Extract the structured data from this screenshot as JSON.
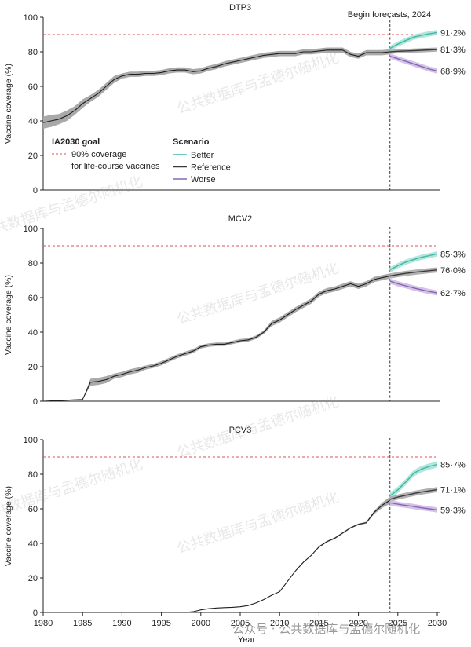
{
  "chart_data": [
    {
      "type": "line",
      "title": "DTP3",
      "ylabel": "Vaccine coverage (%)",
      "ylim": [
        0,
        100
      ],
      "yticks": [
        0,
        20,
        40,
        60,
        80,
        100
      ],
      "goal_value": 90,
      "forecast_start": 2024,
      "forecast_label": "Begin forecasts, 2024",
      "legend": {
        "goal_title": "IA2030 goal",
        "goal_label": "90% coverage\nfor life-course vaccines",
        "scenario_title": "Scenario",
        "scenario_labels": [
          "Better",
          "Reference",
          "Worse"
        ]
      },
      "history": {
        "x": [
          1980,
          1981,
          1982,
          1983,
          1984,
          1985,
          1986,
          1987,
          1988,
          1989,
          1990,
          1991,
          1992,
          1993,
          1994,
          1995,
          1996,
          1997,
          1998,
          1999,
          2000,
          2001,
          2002,
          2003,
          2004,
          2005,
          2006,
          2007,
          2008,
          2009,
          2010,
          2011,
          2012,
          2013,
          2014,
          2015,
          2016,
          2017,
          2018,
          2019,
          2020,
          2021,
          2022,
          2023,
          2024
        ],
        "y": [
          39,
          40,
          41,
          43,
          46,
          50,
          53,
          56,
          60,
          64,
          66,
          67,
          67,
          67.5,
          67.5,
          68,
          69,
          69.5,
          69.5,
          68.5,
          69,
          70.5,
          71.5,
          73,
          74,
          75,
          76,
          77,
          78,
          78.5,
          79,
          79,
          79,
          80,
          80,
          80.5,
          81,
          81,
          81,
          78.5,
          77.5,
          79.5,
          79.5,
          79.5,
          80
        ],
        "band": [
          3.5,
          3.5,
          3,
          3,
          2.5,
          2.5,
          2,
          2,
          2,
          2,
          1.5,
          1.5,
          1.5,
          1.5,
          1.5,
          1.5,
          1.5,
          1.5,
          1.5,
          1.5,
          1.5,
          1.5,
          1.5,
          1.5,
          1.5,
          1.5,
          1.5,
          1.5,
          1.5,
          1.5,
          1.5,
          1.5,
          1.5,
          1.5,
          1.5,
          1.5,
          1.5,
          1.5,
          1.5,
          1.5,
          1.5,
          1.5,
          1.5,
          1.5,
          1.5
        ]
      },
      "forecast": {
        "x": [
          2024,
          2025,
          2026,
          2027,
          2028,
          2029,
          2030
        ],
        "series": [
          {
            "name": "Better",
            "values": [
              82,
              84.5,
              86.5,
              88.5,
              89.5,
              90.5,
              91.2
            ],
            "band": 1.5
          },
          {
            "name": "Reference",
            "values": [
              80,
              80.3,
              80.5,
              80.7,
              80.9,
              81.1,
              81.3
            ],
            "band": 1.2
          },
          {
            "name": "Worse",
            "values": [
              77.5,
              76,
              74.5,
              73,
              71.5,
              70,
              68.9
            ],
            "band": 1.5
          }
        ],
        "end_labels": [
          "91·2%",
          "81·3%",
          "68·9%"
        ]
      }
    },
    {
      "type": "line",
      "title": "MCV2",
      "ylabel": "Vaccine coverage (%)",
      "ylim": [
        0,
        100
      ],
      "yticks": [
        0,
        20,
        40,
        60,
        80,
        100
      ],
      "goal_value": 90,
      "forecast_start": 2024,
      "history": {
        "x": [
          1980,
          1981,
          1982,
          1983,
          1984,
          1985,
          1986,
          1987,
          1988,
          1989,
          1990,
          1991,
          1992,
          1993,
          1994,
          1995,
          1996,
          1997,
          1998,
          1999,
          2000,
          2001,
          2002,
          2003,
          2004,
          2005,
          2006,
          2007,
          2008,
          2009,
          2010,
          2011,
          2012,
          2013,
          2014,
          2015,
          2016,
          2017,
          2018,
          2019,
          2020,
          2021,
          2022,
          2023,
          2024
        ],
        "y": [
          0,
          0.2,
          0.4,
          0.6,
          0.8,
          1,
          11,
          11.5,
          12.5,
          14.5,
          15.5,
          17,
          18,
          19.5,
          20.5,
          22,
          24,
          26,
          27.5,
          29,
          31.5,
          32.5,
          33,
          33,
          34,
          35,
          35.5,
          37,
          40,
          45,
          47,
          50,
          53,
          55.5,
          58,
          62,
          64,
          65,
          66.5,
          68,
          66.5,
          68,
          70.5,
          71.5,
          72.5
        ],
        "band": [
          0,
          0,
          0,
          0,
          0,
          0,
          2,
          2,
          2,
          1.5,
          1.5,
          1.5,
          1.5,
          1.2,
          1.2,
          1.2,
          1.2,
          1.2,
          1.2,
          1.2,
          1,
          1,
          1,
          1,
          1,
          1,
          1,
          1,
          1,
          1.5,
          1.5,
          1.5,
          1.5,
          1.5,
          1.5,
          1.5,
          1.5,
          1.5,
          1.5,
          1.5,
          1.5,
          1.5,
          1.5,
          1.5,
          1.5
        ]
      },
      "forecast": {
        "x": [
          2024,
          2025,
          2026,
          2027,
          2028,
          2029,
          2030
        ],
        "series": [
          {
            "name": "Better",
            "values": [
              76,
              78.5,
              80.5,
              82,
              83.3,
              84.3,
              85.3
            ],
            "band": 1.5
          },
          {
            "name": "Reference",
            "values": [
              72.5,
              73.3,
              74,
              74.6,
              75.1,
              75.6,
              76.0
            ],
            "band": 1.5
          },
          {
            "name": "Worse",
            "values": [
              69.5,
              68,
              66.8,
              65.6,
              64.5,
              63.5,
              62.7
            ],
            "band": 1.5
          }
        ],
        "end_labels": [
          "85·3%",
          "76·0%",
          "62·7%"
        ]
      }
    },
    {
      "type": "line",
      "title": "PCV3",
      "ylabel": "Vaccine coverage (%)",
      "xlabel": "Year",
      "ylim": [
        0,
        100
      ],
      "yticks": [
        0,
        20,
        40,
        60,
        80,
        100
      ],
      "xticks": [
        1980,
        1985,
        1990,
        1995,
        2000,
        2005,
        2010,
        2015,
        2020,
        2025,
        2030
      ],
      "goal_value": 90,
      "forecast_start": 2024,
      "history": {
        "x": [
          1980,
          1998,
          1999,
          2000,
          2001,
          2002,
          2003,
          2004,
          2005,
          2006,
          2007,
          2008,
          2009,
          2010,
          2011,
          2012,
          2013,
          2014,
          2015,
          2016,
          2017,
          2018,
          2019,
          2020,
          2021,
          2022,
          2023,
          2024
        ],
        "y": [
          0,
          0,
          0.4,
          1.5,
          2.2,
          2.6,
          2.8,
          3,
          3.3,
          4,
          5.5,
          7.5,
          10,
          12,
          18,
          24,
          29,
          33,
          38,
          41,
          43,
          46,
          49,
          51,
          52,
          58,
          62,
          65
        ],
        "band": [
          0,
          0,
          0,
          0,
          0,
          0,
          0,
          0,
          0,
          0,
          0,
          0,
          0,
          0,
          0,
          0,
          0,
          0,
          0.5,
          0.5,
          0.5,
          0.5,
          0.5,
          0.5,
          0.5,
          1,
          1.5,
          2
        ]
      },
      "forecast": {
        "x": [
          2024,
          2025,
          2026,
          2027,
          2028,
          2029,
          2030
        ],
        "series": [
          {
            "name": "Better",
            "values": [
              67.5,
              71,
              75.5,
              80.5,
              83,
              84.5,
              85.7
            ],
            "band": 1.8
          },
          {
            "name": "Reference",
            "values": [
              65.5,
              66.8,
              67.8,
              68.8,
              69.7,
              70.4,
              71.1
            ],
            "band": 1.5
          },
          {
            "name": "Worse",
            "values": [
              63.5,
              62.7,
              62,
              61.3,
              60.6,
              60,
              59.3
            ],
            "band": 1.5
          }
        ],
        "end_labels": [
          "85·7%",
          "71·1%",
          "59·3%"
        ]
      }
    }
  ],
  "colors": {
    "better": "#3fb8a6",
    "better_band": "#a8e3d9",
    "reference": "#3a3a3a",
    "reference_band": "#a9a9a9",
    "worse": "#8b63b6",
    "worse_band": "#cdbde3",
    "goal": "#d9534f",
    "axis": "#222222"
  },
  "watermarks": [
    "公共数据库与孟德尔随机化",
    "公共数据库与孟德尔随机化",
    "公共数据库与孟德尔随机化",
    "公共数据库与孟德尔随机化",
    "公共数据库与孟德尔随机化",
    "公共数据库与孟德尔随机化"
  ],
  "watermark_footer": "公众号 · 公共数据库与孟德尔随机化"
}
